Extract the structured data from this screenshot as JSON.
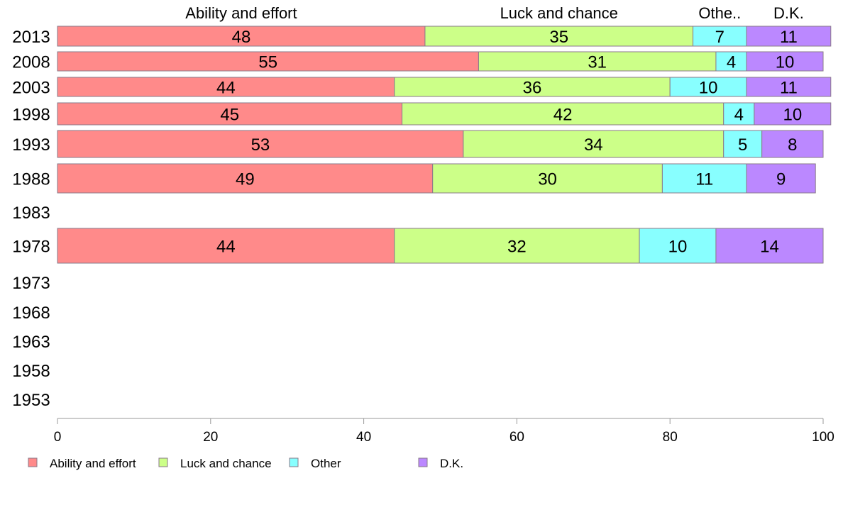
{
  "chart_data": {
    "type": "bar",
    "orientation": "horizontal",
    "stacked": true,
    "header_labels": [
      "Ability and effort",
      "Luck and chance",
      "Othe..",
      "D.K."
    ],
    "categories": [
      "2013",
      "2008",
      "2003",
      "1998",
      "1993",
      "1988",
      "1983",
      "1978",
      "1973",
      "1968",
      "1963",
      "1958",
      "1953"
    ],
    "series": [
      {
        "name": "Ability and effort",
        "color": "#ff8a8a",
        "values": [
          48,
          55,
          44,
          45,
          53,
          49,
          null,
          44,
          null,
          null,
          null,
          null,
          null
        ]
      },
      {
        "name": "Luck and chance",
        "color": "#ccff88",
        "values": [
          35,
          31,
          36,
          42,
          34,
          30,
          null,
          32,
          null,
          null,
          null,
          null,
          null
        ]
      },
      {
        "name": "Other",
        "color": "#88ffff",
        "values": [
          7,
          4,
          10,
          4,
          5,
          11,
          null,
          10,
          null,
          null,
          null,
          null,
          null
        ]
      },
      {
        "name": "D.K.",
        "color": "#bb88ff",
        "values": [
          11,
          10,
          11,
          10,
          8,
          9,
          null,
          14,
          null,
          null,
          null,
          null,
          null
        ]
      }
    ],
    "xlim": [
      0,
      100
    ],
    "xticks": [
      "0",
      "20",
      "40",
      "60",
      "80",
      "100"
    ],
    "grid": false,
    "legend_position": "bottom-left"
  }
}
